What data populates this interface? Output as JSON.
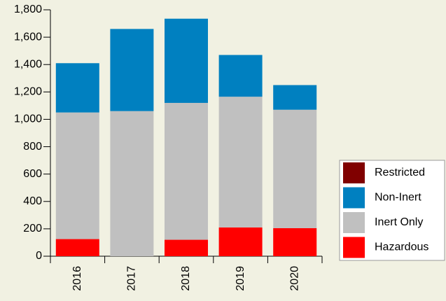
{
  "chart_data": {
    "type": "stacked_bar",
    "categories": [
      "2016",
      "2017",
      "2018",
      "2019",
      "2020"
    ],
    "series": [
      {
        "name": "Hazardous",
        "color": "#ff0000",
        "values": [
          125,
          0,
          120,
          210,
          205
        ]
      },
      {
        "name": "Inert Only",
        "color": "#c0c0c0",
        "values": [
          925,
          1060,
          1000,
          955,
          865
        ]
      },
      {
        "name": "Non-Inert",
        "color": "#0080c0",
        "values": [
          360,
          600,
          615,
          305,
          180
        ]
      },
      {
        "name": "Restricted",
        "color": "#800000",
        "values": [
          0,
          0,
          0,
          0,
          0
        ]
      }
    ],
    "ylim": [
      0,
      1800
    ],
    "yticks": [
      0,
      200,
      400,
      600,
      800,
      {
        "value": 1000,
        "label": "1,000"
      },
      {
        "value": 1200,
        "label": "1,200"
      },
      {
        "value": 1400,
        "label": "1,400"
      },
      {
        "value": 1600,
        "label": "1,600"
      },
      {
        "value": 1800,
        "label": "1,800"
      }
    ],
    "legend": "right"
  }
}
